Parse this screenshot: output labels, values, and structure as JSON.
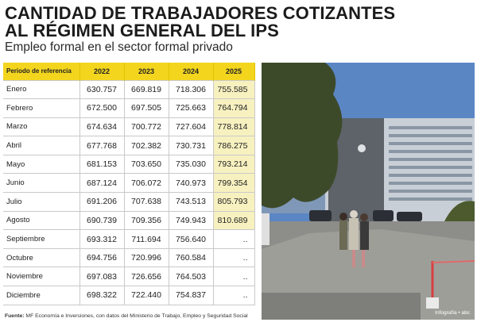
{
  "header": {
    "title_line1": "CANTIDAD DE TRABAJADORES COTIZANTES",
    "title_line2": "AL RÉGIMEN GENERAL DEL IPS",
    "subtitle": "Empleo formal en el sector formal privado"
  },
  "table": {
    "headers": [
      "Periodo de referencia",
      "2022",
      "2023",
      "2024",
      "2025"
    ],
    "rows": [
      [
        "Enero",
        "630.757",
        "669.819",
        "718.306",
        "755.585"
      ],
      [
        "Febrero",
        "672.500",
        "697.505",
        "725.663",
        "764.794"
      ],
      [
        "Marzo",
        "674.634",
        "700.772",
        "727.604",
        "778.814"
      ],
      [
        "Abril",
        "677.768",
        "702.382",
        "730.731",
        "786.275"
      ],
      [
        "Mayo",
        "681.153",
        "703.650",
        "735.030",
        "793.214"
      ],
      [
        "Junio",
        "687.124",
        "706.072",
        "740.973",
        "799.354"
      ],
      [
        "Julio",
        "691.206",
        "707.638",
        "743.513",
        "805.793"
      ],
      [
        "Agosto",
        "690.739",
        "709.356",
        "749.943",
        "810.689"
      ],
      [
        "Septiembre",
        "693.312",
        "711.694",
        "756.640",
        ".."
      ],
      [
        "Octubre",
        "694.756",
        "720.996",
        "760.584",
        ".."
      ],
      [
        "Noviembre",
        "697.083",
        "726.656",
        "764.503",
        ".."
      ],
      [
        "Diciembre",
        "698.322",
        "722.440",
        "754.837",
        ".."
      ]
    ]
  },
  "photo": {
    "credit": "Infografía • abc",
    "colors": {
      "sky": "#5b86c4",
      "building": "#c9cfd6",
      "trees": "#3d4a2a",
      "ground": "#8d8d89"
    }
  },
  "footer": {
    "source_label": "Fuente:",
    "source_text": " MF Economía e Inversiones, con datos del Ministerio de Trabajo, Empleo y Seguridad Social"
  },
  "colors": {
    "header_yellow": "#f3d51e",
    "shade_2025": "#f7f1c0"
  }
}
